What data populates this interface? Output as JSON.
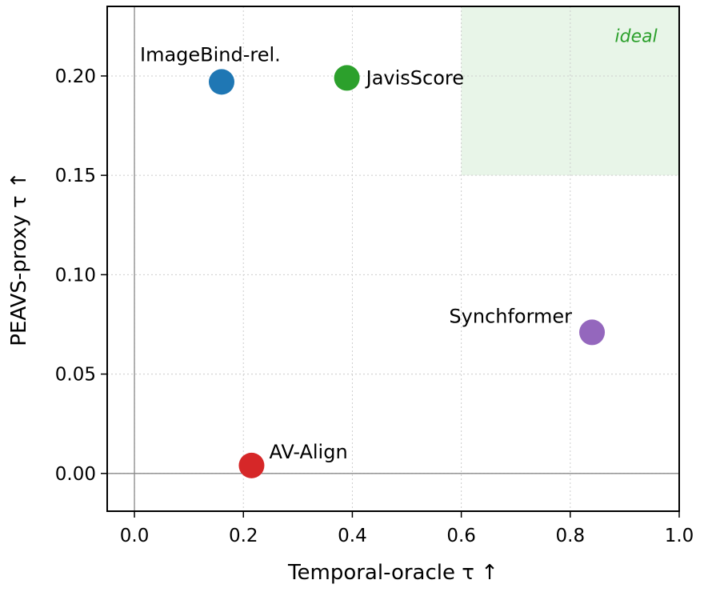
{
  "chart_data": {
    "type": "scatter",
    "xlabel": "Temporal-oracle τ ↑",
    "ylabel": "PEAVS-proxy τ ↑",
    "xlim": [
      -0.05,
      1.0
    ],
    "ylim": [
      -0.019,
      0.235
    ],
    "xticks": [
      "0.0",
      "0.2",
      "0.4",
      "0.6",
      "0.8",
      "1.0"
    ],
    "yticks": [
      "0.00",
      "0.05",
      "0.10",
      "0.15",
      "0.20"
    ],
    "grid": true,
    "reference_lines": {
      "x": 0,
      "y": 0
    },
    "ideal_region": {
      "label": "ideal",
      "x": [
        0.6,
        1.0
      ],
      "y": [
        0.15,
        0.235
      ],
      "color": "#2ca02c"
    },
    "points": [
      {
        "name": "ImageBind-rel.",
        "x": 0.16,
        "y": 0.197,
        "color": "#1f77b4"
      },
      {
        "name": "JavisScore",
        "x": 0.39,
        "y": 0.199,
        "color": "#2ca02c"
      },
      {
        "name": "Synchformer",
        "x": 0.84,
        "y": 0.071,
        "color": "#9467bd"
      },
      {
        "name": "AV-Align",
        "x": 0.215,
        "y": 0.004,
        "color": "#d62728"
      }
    ]
  }
}
